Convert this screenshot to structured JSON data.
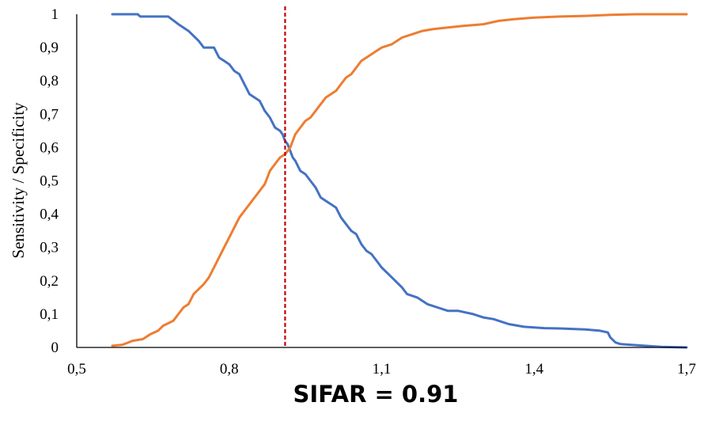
{
  "chart_data": {
    "type": "line",
    "ylabel": "Sensitivity / Specificity",
    "xlabel": "",
    "xlim": [
      0.5,
      1.7
    ],
    "ylim": [
      0,
      1
    ],
    "x_ticks": [
      {
        "value": 0.5,
        "label": "0,5"
      },
      {
        "value": 0.8,
        "label": "0,8"
      },
      {
        "value": 1.1,
        "label": "1,1"
      },
      {
        "value": 1.4,
        "label": "1,4"
      },
      {
        "value": 1.7,
        "label": "1,7"
      }
    ],
    "y_ticks": [
      {
        "value": 0,
        "label": "0"
      },
      {
        "value": 0.1,
        "label": "0,1"
      },
      {
        "value": 0.2,
        "label": "0,2"
      },
      {
        "value": 0.3,
        "label": "0,3"
      },
      {
        "value": 0.4,
        "label": "0,4"
      },
      {
        "value": 0.5,
        "label": "0,5"
      },
      {
        "value": 0.6,
        "label": "0,6"
      },
      {
        "value": 0.7,
        "label": "0,7"
      },
      {
        "value": 0.8,
        "label": "0,8"
      },
      {
        "value": 0.9,
        "label": "0,9"
      },
      {
        "value": 1,
        "label": "1"
      }
    ],
    "grid": false,
    "legend": "none",
    "series": [
      {
        "color": "#4472C4",
        "points": [
          [
            0.57,
            1.0
          ],
          [
            0.62,
            1.0
          ],
          [
            0.625,
            0.993
          ],
          [
            0.65,
            0.993
          ],
          [
            0.68,
            0.993
          ],
          [
            0.7,
            0.97
          ],
          [
            0.72,
            0.95
          ],
          [
            0.74,
            0.92
          ],
          [
            0.75,
            0.9
          ],
          [
            0.77,
            0.9
          ],
          [
            0.78,
            0.87
          ],
          [
            0.79,
            0.86
          ],
          [
            0.8,
            0.85
          ],
          [
            0.81,
            0.83
          ],
          [
            0.82,
            0.82
          ],
          [
            0.83,
            0.79
          ],
          [
            0.84,
            0.76
          ],
          [
            0.85,
            0.75
          ],
          [
            0.86,
            0.74
          ],
          [
            0.87,
            0.71
          ],
          [
            0.88,
            0.69
          ],
          [
            0.89,
            0.66
          ],
          [
            0.9,
            0.65
          ],
          [
            0.905,
            0.64
          ],
          [
            0.91,
            0.62
          ],
          [
            0.915,
            0.61
          ],
          [
            0.92,
            0.59
          ],
          [
            0.925,
            0.57
          ],
          [
            0.93,
            0.56
          ],
          [
            0.94,
            0.53
          ],
          [
            0.95,
            0.52
          ],
          [
            0.96,
            0.5
          ],
          [
            0.97,
            0.48
          ],
          [
            0.98,
            0.45
          ],
          [
            0.99,
            0.44
          ],
          [
            1.0,
            0.43
          ],
          [
            1.01,
            0.42
          ],
          [
            1.02,
            0.39
          ],
          [
            1.03,
            0.37
          ],
          [
            1.04,
            0.35
          ],
          [
            1.05,
            0.34
          ],
          [
            1.06,
            0.31
          ],
          [
            1.07,
            0.29
          ],
          [
            1.08,
            0.28
          ],
          [
            1.09,
            0.26
          ],
          [
            1.1,
            0.24
          ],
          [
            1.12,
            0.21
          ],
          [
            1.14,
            0.18
          ],
          [
            1.15,
            0.16
          ],
          [
            1.17,
            0.15
          ],
          [
            1.19,
            0.13
          ],
          [
            1.21,
            0.12
          ],
          [
            1.23,
            0.11
          ],
          [
            1.25,
            0.11
          ],
          [
            1.28,
            0.1
          ],
          [
            1.3,
            0.09
          ],
          [
            1.32,
            0.085
          ],
          [
            1.35,
            0.07
          ],
          [
            1.38,
            0.062
          ],
          [
            1.4,
            0.06
          ],
          [
            1.42,
            0.058
          ],
          [
            1.45,
            0.057
          ],
          [
            1.5,
            0.054
          ],
          [
            1.53,
            0.05
          ],
          [
            1.545,
            0.045
          ],
          [
            1.55,
            0.03
          ],
          [
            1.56,
            0.015
          ],
          [
            1.57,
            0.01
          ],
          [
            1.6,
            0.007
          ],
          [
            1.65,
            0.002
          ],
          [
            1.7,
            0.0
          ]
        ]
      },
      {
        "color": "#ED7D31",
        "points": [
          [
            0.57,
            0.005
          ],
          [
            0.59,
            0.008
          ],
          [
            0.61,
            0.02
          ],
          [
            0.63,
            0.025
          ],
          [
            0.645,
            0.04
          ],
          [
            0.66,
            0.05
          ],
          [
            0.67,
            0.065
          ],
          [
            0.69,
            0.08
          ],
          [
            0.7,
            0.1
          ],
          [
            0.71,
            0.12
          ],
          [
            0.72,
            0.13
          ],
          [
            0.73,
            0.16
          ],
          [
            0.75,
            0.19
          ],
          [
            0.76,
            0.21
          ],
          [
            0.77,
            0.24
          ],
          [
            0.78,
            0.27
          ],
          [
            0.79,
            0.3
          ],
          [
            0.8,
            0.33
          ],
          [
            0.81,
            0.36
          ],
          [
            0.82,
            0.39
          ],
          [
            0.83,
            0.41
          ],
          [
            0.84,
            0.43
          ],
          [
            0.85,
            0.45
          ],
          [
            0.86,
            0.47
          ],
          [
            0.87,
            0.49
          ],
          [
            0.88,
            0.53
          ],
          [
            0.89,
            0.55
          ],
          [
            0.9,
            0.57
          ],
          [
            0.91,
            0.58
          ],
          [
            0.92,
            0.6
          ],
          [
            0.925,
            0.62
          ],
          [
            0.93,
            0.64
          ],
          [
            0.94,
            0.66
          ],
          [
            0.95,
            0.68
          ],
          [
            0.96,
            0.69
          ],
          [
            0.97,
            0.71
          ],
          [
            0.98,
            0.73
          ],
          [
            0.99,
            0.75
          ],
          [
            1.0,
            0.76
          ],
          [
            1.01,
            0.77
          ],
          [
            1.02,
            0.79
          ],
          [
            1.03,
            0.81
          ],
          [
            1.04,
            0.82
          ],
          [
            1.05,
            0.84
          ],
          [
            1.06,
            0.86
          ],
          [
            1.07,
            0.87
          ],
          [
            1.08,
            0.88
          ],
          [
            1.09,
            0.89
          ],
          [
            1.1,
            0.9
          ],
          [
            1.12,
            0.91
          ],
          [
            1.14,
            0.93
          ],
          [
            1.16,
            0.94
          ],
          [
            1.18,
            0.95
          ],
          [
            1.2,
            0.955
          ],
          [
            1.23,
            0.96
          ],
          [
            1.26,
            0.965
          ],
          [
            1.3,
            0.97
          ],
          [
            1.33,
            0.98
          ],
          [
            1.36,
            0.985
          ],
          [
            1.4,
            0.99
          ],
          [
            1.45,
            0.993
          ],
          [
            1.5,
            0.995
          ],
          [
            1.55,
            0.998
          ],
          [
            1.6,
            1.0
          ],
          [
            1.7,
            1.0
          ]
        ]
      }
    ],
    "threshold": {
      "x": 0.91,
      "color": "#C00000",
      "style": "dashed"
    }
  },
  "annotation": {
    "text": "SIFAR = 0.91"
  }
}
